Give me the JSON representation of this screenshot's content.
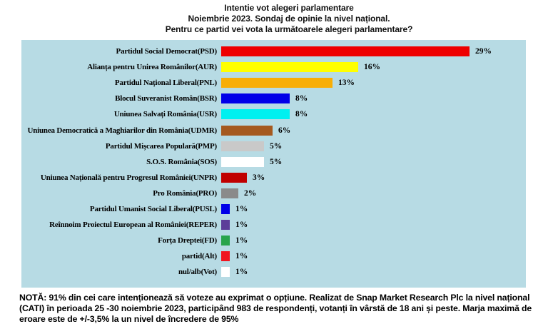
{
  "chart_data": {
    "type": "bar",
    "orientation": "horizontal",
    "title": "Intentie vot alegeri parlamentare",
    "subtitle": "Noiembrie 2023. Sondaj de opinie la nivel național.",
    "question": "Pentru ce partid vei vota la următoarele alegeri parlamentare?",
    "unit": "%",
    "xlim": [
      0,
      35
    ],
    "grid": false,
    "legend": "none",
    "plot_background": "#B7DBE4",
    "categories": [
      "Partidul Social Democrat(PSD)",
      "Alianța pentru Unirea Românilor(AUR)",
      "Partidul Național Liberal(PNL)",
      "Blocul Suveranist Român(BSR)",
      "Uniunea Salvați România(USR)",
      "Uniunea Democratică a Maghiarilor din România(UDMR)",
      "Partidul Mișcarea Populară(PMP)",
      "S.O.S. România(SOS)",
      "Uniunea Națională pentru Progresul României(UNPR)",
      "Pro România(PRO)",
      "Partidul Umanist Social Liberal(PUSL)",
      "Reînnoim Proiectul European al României(REPER)",
      "Forța Dreptei(FD)",
      "partid(Alt)",
      "nul/alb(Vot)"
    ],
    "values": [
      29,
      16,
      13,
      8,
      8,
      6,
      5,
      5,
      3,
      2,
      1,
      1,
      1,
      1,
      1
    ],
    "colors": [
      "#EE0000",
      "#FFFF00",
      "#F8AE06",
      "#0000E8",
      "#00F0F0",
      "#A5591F",
      "#C9C9C9",
      "#FFFFFF",
      "#C00000",
      "#8A8A8A",
      "#0000E8",
      "#5C3D99",
      "#28A44B",
      "#F01520",
      "#FFFFFF"
    ]
  },
  "footnote": "NOTĂ: 91% din cei care intenționează să voteze au exprimat o opțiune. Realizat de Snap Market Research Plc la nivel național (CATI) în perioada 25 -30 noiembrie 2023, participând 983 de respondenți, votanți în vârstă de 18 ani și peste. Marja maximă de eroare este de +/-3,5% la un nivel de încredere de 95%"
}
